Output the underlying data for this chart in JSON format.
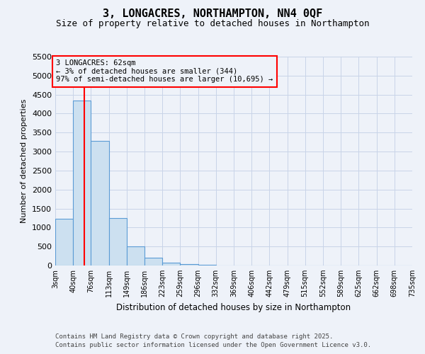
{
  "title": "3, LONGACRES, NORTHAMPTON, NN4 0QF",
  "subtitle": "Size of property relative to detached houses in Northampton",
  "xlabel": "Distribution of detached houses by size in Northampton",
  "ylabel": "Number of detached properties",
  "annotation_line1": "3 LONGACRES: 62sqm",
  "annotation_line2": "← 3% of detached houses are smaller (344)",
  "annotation_line3": "97% of semi-detached houses are larger (10,695) →",
  "footer_line1": "Contains HM Land Registry data © Crown copyright and database right 2025.",
  "footer_line2": "Contains public sector information licensed under the Open Government Licence v3.0.",
  "property_size": 62,
  "bar_edges": [
    3,
    40,
    76,
    113,
    149,
    186,
    223,
    259,
    296,
    332,
    369,
    406,
    442,
    479,
    515,
    552,
    589,
    625,
    662,
    698,
    735
  ],
  "bar_heights": [
    1230,
    4350,
    3280,
    1240,
    500,
    200,
    80,
    30,
    15,
    8,
    5,
    3,
    2,
    2,
    1,
    1,
    1,
    0,
    0,
    0
  ],
  "bar_color": "#cce0f0",
  "bar_edge_color": "#5b9bd5",
  "marker_color": "red",
  "ylim": [
    0,
    5500
  ],
  "yticks": [
    0,
    500,
    1000,
    1500,
    2000,
    2500,
    3000,
    3500,
    4000,
    4500,
    5000,
    5500
  ],
  "annotation_box_color": "red",
  "bg_color": "#eef2f9",
  "grid_color": "#c8d4e8"
}
